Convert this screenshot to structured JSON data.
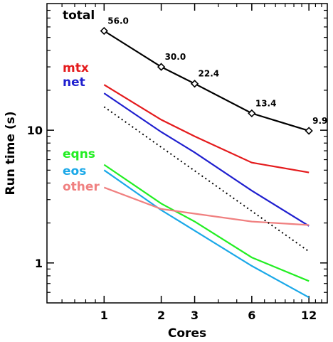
{
  "chart_data": {
    "type": "line",
    "xscale": "log",
    "yscale": "log",
    "xlabel": "Cores",
    "ylabel": "Run time (s)",
    "xlim": [
      0.5,
      15
    ],
    "ylim": [
      0.5,
      90
    ],
    "xticks": [
      1,
      2,
      3,
      6,
      12
    ],
    "xtick_labels": [
      "1",
      "2",
      "3",
      "6",
      "12"
    ],
    "yticks": [
      1,
      10
    ],
    "ytick_labels": [
      "1",
      "10"
    ],
    "grid": false,
    "legend_placement": "top-left",
    "series": [
      {
        "name": "total",
        "color": "#000000",
        "marker": "diamond",
        "dashed": false,
        "x": [
          1,
          2,
          3,
          6,
          12
        ],
        "y": [
          56.0,
          30.0,
          22.4,
          13.4,
          9.9
        ],
        "labels": [
          "56.0",
          "30.0",
          "22.4",
          "13.4",
          "9.9"
        ]
      },
      {
        "name": "mtx",
        "color": "#e41a1c",
        "dashed": false,
        "x": [
          1,
          2,
          3,
          6,
          12
        ],
        "y": [
          22.0,
          12.0,
          9.0,
          5.7,
          4.8
        ]
      },
      {
        "name": "net",
        "color": "#1f1fcf",
        "dashed": false,
        "x": [
          1,
          2,
          3,
          6,
          12
        ],
        "y": [
          19.0,
          9.7,
          6.8,
          3.5,
          1.9
        ]
      },
      {
        "name": "eqns",
        "color": "#22ee22",
        "dashed": false,
        "x": [
          1,
          2,
          3,
          6,
          12
        ],
        "y": [
          5.5,
          2.8,
          2.05,
          1.1,
          0.73
        ]
      },
      {
        "name": "eos",
        "color": "#1aa8e8",
        "dashed": false,
        "x": [
          1,
          2,
          3,
          6,
          12
        ],
        "y": [
          5.0,
          2.5,
          1.75,
          0.95,
          0.55
        ]
      },
      {
        "name": "other",
        "color": "#f08080",
        "dashed": false,
        "x": [
          1,
          2,
          3,
          6,
          12
        ],
        "y": [
          3.7,
          2.55,
          2.35,
          2.05,
          1.93
        ]
      },
      {
        "name": "",
        "color": "#000000",
        "dashed": true,
        "x": [
          1,
          12
        ],
        "y": [
          15.0,
          1.22
        ]
      }
    ]
  }
}
